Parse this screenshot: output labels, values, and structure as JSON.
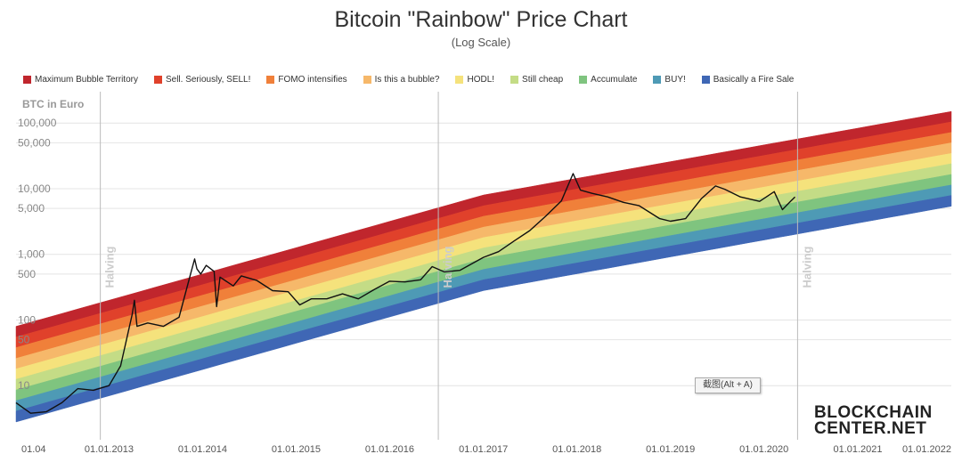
{
  "header": {
    "title": "Bitcoin \"Rainbow\" Price Chart",
    "subtitle": "(Log Scale)"
  },
  "tooltip": "截图(Alt + A)",
  "logo": {
    "line1": "BLOCKCHAIN",
    "line2": "CENTER.NET"
  },
  "chart_data": {
    "type": "line",
    "title": "Bitcoin \"Rainbow\" Price Chart",
    "subtitle": "(Log Scale)",
    "ylabel": "BTC in Euro",
    "yscale": "log",
    "ylim": [
      1.5,
      300000
    ],
    "xlim": [
      "2012-01-04",
      "2022-01-01"
    ],
    "grid": true,
    "legend_position": "top-left",
    "y_ticks": [
      {
        "value": 100000,
        "label": "100,000"
      },
      {
        "value": 50000,
        "label": "50,000"
      },
      {
        "value": 10000,
        "label": "10,000"
      },
      {
        "value": 5000,
        "label": "5,000"
      },
      {
        "value": 1000,
        "label": "1,000"
      },
      {
        "value": 500,
        "label": "500"
      },
      {
        "value": 100,
        "label": "100"
      },
      {
        "value": 50,
        "label": "50"
      },
      {
        "value": 10,
        "label": "10"
      }
    ],
    "x_ticks": [
      {
        "date": "2012-01-04",
        "label": "01.04"
      },
      {
        "date": "2013-01-01",
        "label": "01.01.2013"
      },
      {
        "date": "2014-01-01",
        "label": "01.01.2014"
      },
      {
        "date": "2015-01-01",
        "label": "01.01.2015"
      },
      {
        "date": "2016-01-01",
        "label": "01.01.2016"
      },
      {
        "date": "2017-01-01",
        "label": "01.01.2017"
      },
      {
        "date": "2018-01-01",
        "label": "01.01.2018"
      },
      {
        "date": "2019-01-01",
        "label": "01.01.2019"
      },
      {
        "date": "2020-01-01",
        "label": "01.01.2020"
      },
      {
        "date": "2021-01-01",
        "label": "01.01.2021"
      },
      {
        "date": "2022-01-01",
        "label": "01.01.2022"
      }
    ],
    "halvings": [
      {
        "date": "2012-11-28",
        "label": "Halving"
      },
      {
        "date": "2016-07-09",
        "label": "Halving"
      },
      {
        "date": "2020-05-11",
        "label": "Halving"
      }
    ],
    "bands": [
      {
        "name": "Maximum Bubble Territory",
        "color": "#c0262d",
        "top": [
          80,
          8000,
          150000
        ],
        "bottom": [
          55,
          5500,
          104000
        ]
      },
      {
        "name": "Sell. Seriously, SELL!",
        "color": "#e0412b",
        "top": [
          55,
          5500,
          104000
        ],
        "bottom": [
          38,
          3800,
          72000
        ]
      },
      {
        "name": "FOMO intensifies",
        "color": "#f0803a",
        "top": [
          38,
          3800,
          72000
        ],
        "bottom": [
          26,
          2600,
          50000
        ]
      },
      {
        "name": "Is this a bubble?",
        "color": "#f6b86a",
        "top": [
          26,
          2600,
          50000
        ],
        "bottom": [
          18,
          1800,
          34500
        ]
      },
      {
        "name": "HODL!",
        "color": "#f5e27c",
        "top": [
          18,
          1800,
          34500
        ],
        "bottom": [
          12.5,
          1250,
          24000
        ]
      },
      {
        "name": "Still cheap",
        "color": "#c4dc86",
        "top": [
          12.5,
          1250,
          24000
        ],
        "bottom": [
          8.6,
          860,
          16500
        ]
      },
      {
        "name": "Accumulate",
        "color": "#7fc47f",
        "top": [
          8.6,
          860,
          16500
        ],
        "bottom": [
          5.9,
          590,
          11400
        ]
      },
      {
        "name": "BUY!",
        "color": "#4e9ab5",
        "top": [
          5.9,
          590,
          11400
        ],
        "bottom": [
          4.1,
          410,
          7900
        ]
      },
      {
        "name": "Basically a Fire Sale",
        "color": "#3f67b5",
        "top": [
          4.1,
          410,
          7900
        ],
        "bottom": [
          2.8,
          280,
          5400
        ]
      }
    ],
    "band_anchor_dates": [
      "2012-01-04",
      "2017-01-01",
      "2022-01-01"
    ],
    "series": [
      {
        "name": "",
        "color": "#111111",
        "points": [
          [
            "2012-01-04",
            5.5
          ],
          [
            "2012-03-01",
            3.8
          ],
          [
            "2012-05-01",
            4.0
          ],
          [
            "2012-07-01",
            5.5
          ],
          [
            "2012-09-01",
            9.0
          ],
          [
            "2012-11-01",
            8.5
          ],
          [
            "2013-01-01",
            10
          ],
          [
            "2013-02-15",
            20
          ],
          [
            "2013-04-01",
            120
          ],
          [
            "2013-04-10",
            200
          ],
          [
            "2013-04-20",
            80
          ],
          [
            "2013-06-01",
            90
          ],
          [
            "2013-08-01",
            80
          ],
          [
            "2013-10-01",
            110
          ],
          [
            "2013-11-15",
            500
          ],
          [
            "2013-12-01",
            850
          ],
          [
            "2013-12-10",
            600
          ],
          [
            "2013-12-25",
            500
          ],
          [
            "2014-01-15",
            680
          ],
          [
            "2014-02-15",
            550
          ],
          [
            "2014-02-25",
            160
          ],
          [
            "2014-03-10",
            450
          ],
          [
            "2014-05-01",
            330
          ],
          [
            "2014-06-01",
            470
          ],
          [
            "2014-08-01",
            400
          ],
          [
            "2014-10-01",
            280
          ],
          [
            "2014-12-01",
            270
          ],
          [
            "2015-01-15",
            170
          ],
          [
            "2015-03-01",
            210
          ],
          [
            "2015-05-01",
            210
          ],
          [
            "2015-07-01",
            250
          ],
          [
            "2015-09-01",
            210
          ],
          [
            "2015-11-01",
            290
          ],
          [
            "2016-01-01",
            390
          ],
          [
            "2016-03-01",
            380
          ],
          [
            "2016-05-01",
            410
          ],
          [
            "2016-06-15",
            650
          ],
          [
            "2016-08-01",
            540
          ],
          [
            "2016-10-01",
            570
          ],
          [
            "2017-01-01",
            900
          ],
          [
            "2017-03-01",
            1100
          ],
          [
            "2017-05-01",
            1600
          ],
          [
            "2017-07-01",
            2300
          ],
          [
            "2017-09-01",
            3800
          ],
          [
            "2017-11-01",
            6500
          ],
          [
            "2017-12-17",
            17000
          ],
          [
            "2018-01-15",
            9500
          ],
          [
            "2018-03-01",
            8500
          ],
          [
            "2018-05-01",
            7500
          ],
          [
            "2018-07-01",
            6200
          ],
          [
            "2018-09-01",
            5500
          ],
          [
            "2018-11-20",
            3500
          ],
          [
            "2019-01-01",
            3200
          ],
          [
            "2019-03-01",
            3500
          ],
          [
            "2019-05-01",
            7000
          ],
          [
            "2019-06-26",
            11000
          ],
          [
            "2019-08-01",
            9800
          ],
          [
            "2019-10-01",
            7500
          ],
          [
            "2019-12-15",
            6400
          ],
          [
            "2020-02-10",
            9000
          ],
          [
            "2020-03-13",
            4800
          ],
          [
            "2020-04-15",
            6500
          ],
          [
            "2020-05-01",
            7500
          ]
        ]
      }
    ]
  }
}
